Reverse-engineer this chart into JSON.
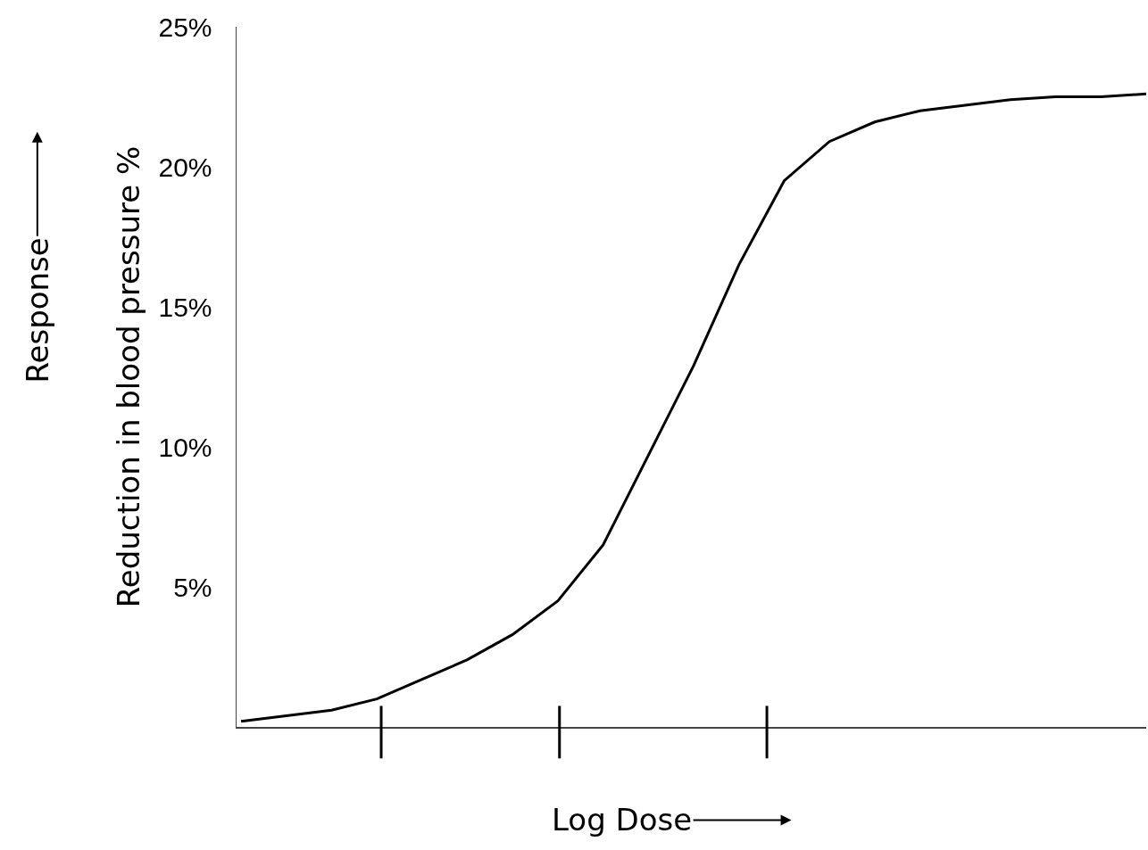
{
  "chart_data": {
    "type": "line",
    "xlabel": "Log Dose",
    "ylabel": "Reduction in blood pressure %",
    "annotations": [
      "Response"
    ],
    "categories": [
      null,
      null,
      null,
      null,
      null,
      null,
      null,
      null,
      null,
      null,
      null,
      null,
      null,
      null,
      null,
      null,
      null,
      null,
      null,
      null,
      null
    ],
    "series": [
      {
        "color": "#000000",
        "values": [
          0.2,
          0.4,
          0.6,
          1.0,
          1.7,
          2.4,
          3.3,
          4.5,
          6.5,
          9.7,
          12.9,
          16.5,
          19.5,
          20.9,
          21.6,
          22.0,
          22.2,
          22.4,
          22.5,
          22.5,
          22.6
        ]
      }
    ],
    "ylim": [
      0,
      25
    ],
    "yticks": [
      {
        "value": 5,
        "label": "5%"
      },
      {
        "value": 10,
        "label": "10%"
      },
      {
        "value": 15,
        "label": "15%"
      },
      {
        "value": 20,
        "label": "20%"
      },
      {
        "value": 25,
        "label": "25%"
      }
    ],
    "grid": false,
    "marker": "none",
    "line_style": "solid"
  }
}
